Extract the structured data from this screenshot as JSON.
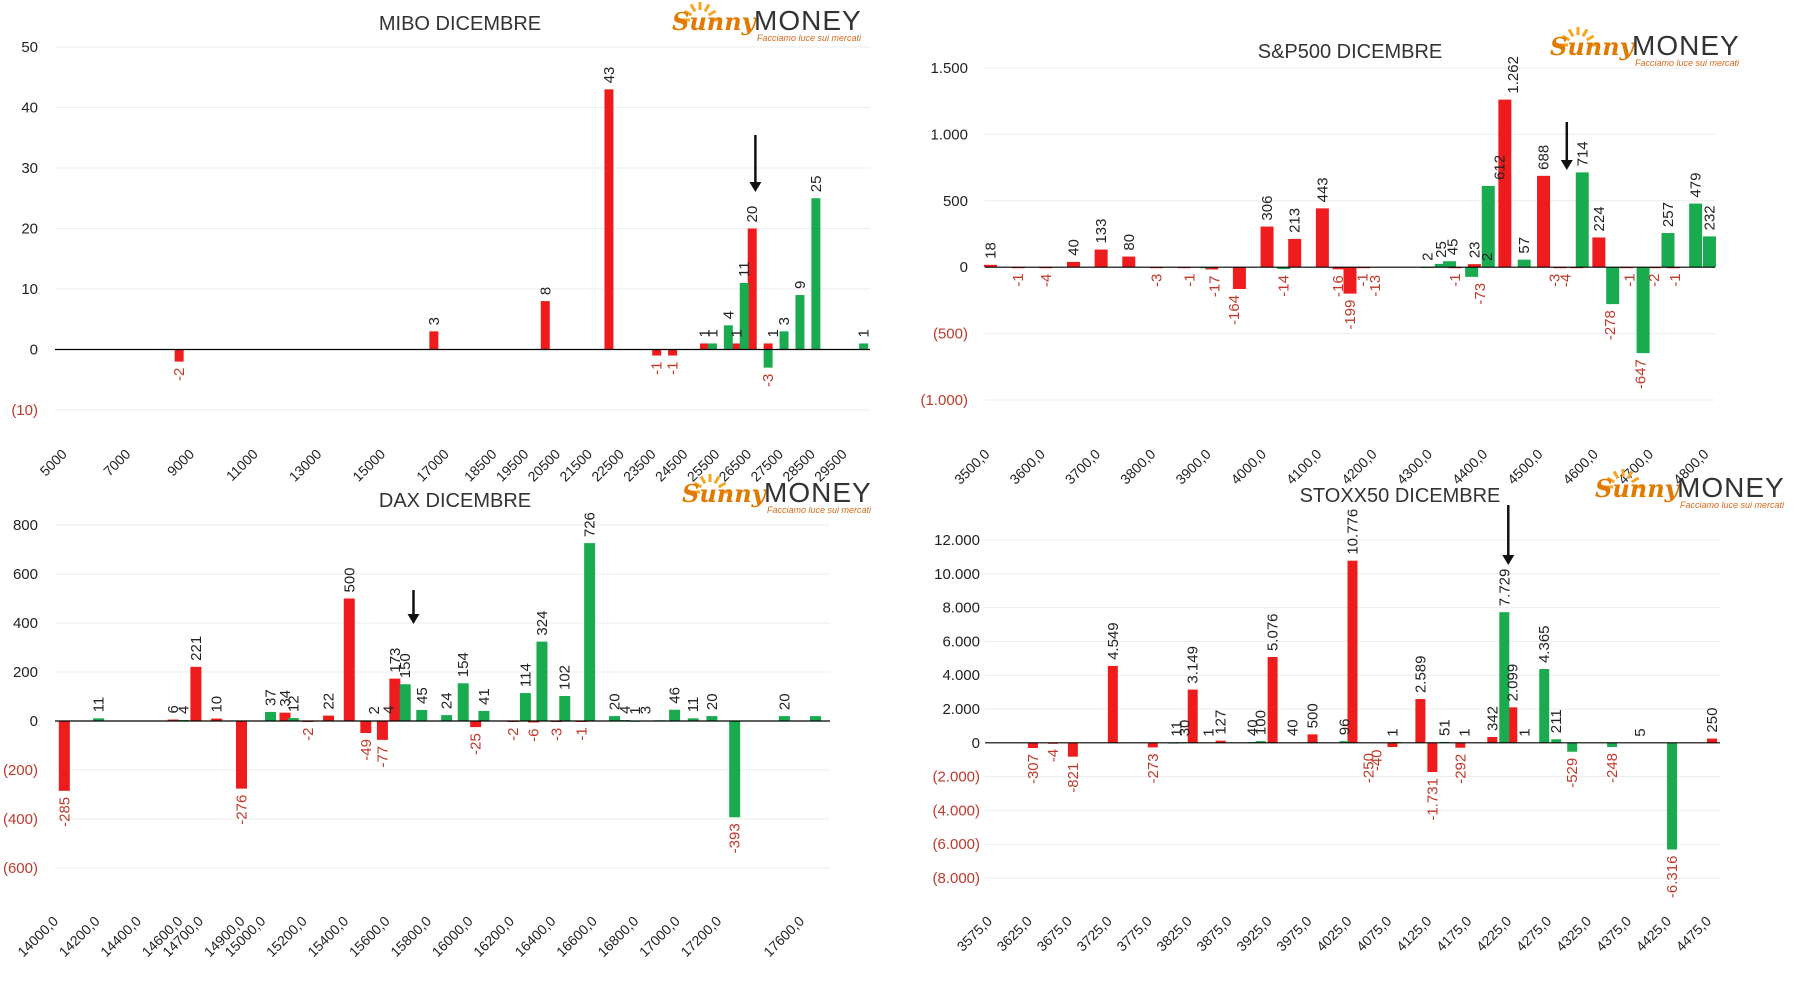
{
  "logo": {
    "brand": "Sunny",
    "word": "MONEY",
    "tagline": "Facciamo luce sui mercati"
  },
  "colors": {
    "red": "#ee1c1c",
    "green": "#1aab50",
    "neg_label": "#c0392b",
    "pos_label": "#222222"
  },
  "chart_data": [
    {
      "type": "bar",
      "title": "MIBO DICEMBRE",
      "ylim": [
        -10,
        50
      ],
      "yticks": [
        -10,
        0,
        10,
        20,
        30,
        40,
        50
      ],
      "ytick_labels": [
        "(10)",
        "0",
        "10",
        "20",
        "30",
        "40",
        "50"
      ],
      "xlim": [
        4600,
        30200
      ],
      "xticks": [
        5000,
        7000,
        9000,
        11000,
        13000,
        15000,
        17000,
        18500,
        19500,
        20500,
        21500,
        22500,
        23500,
        24500,
        25500,
        26500,
        27500,
        28500,
        29500
      ],
      "xtick_labels": [
        "5000",
        "7000",
        "9000",
        "11000",
        "13000",
        "15000",
        "17000",
        "18500",
        "19500",
        "20500",
        "21500",
        "22500",
        "23500",
        "24500",
        "25500",
        "26500",
        "27500",
        "28500",
        "29500"
      ],
      "arrow_x": 26600,
      "series": [
        {
          "color": "red",
          "x": [
            8500,
            16500,
            20000,
            22000,
            23500,
            24000,
            25000,
            26000,
            26500,
            27000
          ],
          "values": [
            -2,
            3,
            8,
            43,
            -1,
            -1,
            1,
            1,
            20,
            1
          ]
        },
        {
          "color": "green",
          "x": [
            25250,
            25750,
            26250,
            27000,
            27500,
            28000,
            28500,
            30000
          ],
          "values": [
            1,
            4,
            11,
            -3,
            3,
            9,
            25,
            1
          ]
        }
      ],
      "labels": [
        {
          "x": 8500,
          "text": "-2"
        },
        {
          "x": 16500,
          "text": "3"
        },
        {
          "x": 20000,
          "text": "8"
        },
        {
          "x": 22000,
          "text": "43"
        },
        {
          "x": 23500,
          "text": "-1"
        },
        {
          "x": 24000,
          "text": "-1"
        },
        {
          "x": 25000,
          "text": "1"
        },
        {
          "x": 25250,
          "text": "1"
        },
        {
          "x": 25750,
          "text": "4"
        },
        {
          "x": 26000,
          "text": "1"
        },
        {
          "x": 26250,
          "text": "11"
        },
        {
          "x": 26500,
          "text": "20"
        },
        {
          "x": 27000,
          "text": "-3"
        },
        {
          "x": 27150,
          "text": "1"
        },
        {
          "x": 27500,
          "text": "3"
        },
        {
          "x": 28000,
          "text": "9"
        },
        {
          "x": 28500,
          "text": "25"
        },
        {
          "x": 30000,
          "text": "1"
        }
      ]
    },
    {
      "type": "bar",
      "title": "S&P500 DICEMBRE",
      "ylim": [
        -1000,
        1500
      ],
      "yticks": [
        -1000,
        -500,
        0,
        500,
        1000,
        1500
      ],
      "ytick_labels": [
        "(1.000)",
        "(500)",
        "0",
        "500",
        "1.000",
        "1.500"
      ],
      "xlim": [
        3490,
        4810
      ],
      "xticks": [
        3500,
        3600,
        3700,
        3800,
        3900,
        4000,
        4100,
        4200,
        4300,
        4400,
        4500,
        4600,
        4700,
        4800
      ],
      "xtick_labels": [
        "3500,0",
        "3600,0",
        "3700,0",
        "3800,0",
        "3900,0",
        "4000,0",
        "4100,0",
        "4200,0",
        "4300,0",
        "4400,0",
        "4500,0",
        "4600,0",
        "4700,0",
        "4800,0"
      ],
      "arrow_x": 4542,
      "series": [
        {
          "color": "red",
          "x": [
            3500,
            3550,
            3600,
            3650,
            3700,
            3750,
            3800,
            3850,
            3900,
            3950,
            4000,
            4050,
            4100,
            4130,
            4150,
            4175,
            4340,
            4375,
            4430,
            4500,
            4530,
            4560,
            4600,
            4650,
            4700,
            4735
          ],
          "values": [
            18,
            -1,
            -4,
            40,
            133,
            80,
            -3,
            -1,
            -17,
            -164,
            306,
            213,
            443,
            -16,
            -199,
            -1,
            -1,
            23,
            1262,
            688,
            -3,
            -4,
            224,
            -1,
            -2,
            -1
          ]
        },
        {
          "color": "green",
          "x": [
            3890,
            4030,
            4290,
            4315,
            4330,
            4370,
            4400,
            4465,
            4570,
            4625,
            4680,
            4725,
            4775
          ],
          "values": [
            -1,
            -14,
            2,
            25,
            45,
            -73,
            612,
            57,
            714,
            -278,
            -647,
            257,
            479
          ]
        },
        {
          "color": "green",
          "x": [
            4800
          ],
          "values": [
            232
          ]
        }
      ],
      "labels": [
        {
          "x": 3500,
          "text": "18"
        },
        {
          "x": 3550,
          "text": "-1"
        },
        {
          "x": 3600,
          "text": "-4"
        },
        {
          "x": 3650,
          "text": "40"
        },
        {
          "x": 3700,
          "text": "133"
        },
        {
          "x": 3750,
          "text": "80"
        },
        {
          "x": 3800,
          "text": "-3"
        },
        {
          "x": 3860,
          "text": "-1"
        },
        {
          "x": 3905,
          "text": "-17"
        },
        {
          "x": 3940,
          "text": "-164"
        },
        {
          "x": 4000,
          "text": "306"
        },
        {
          "x": 4030,
          "text": "-14"
        },
        {
          "x": 4050,
          "text": "213"
        },
        {
          "x": 4100,
          "text": "443"
        },
        {
          "x": 4128,
          "text": "-16"
        },
        {
          "x": 4150,
          "text": "-199"
        },
        {
          "x": 4173,
          "text": "-1"
        },
        {
          "x": 4195,
          "text": "-13"
        },
        {
          "x": 4290,
          "text": "2"
        },
        {
          "x": 4315,
          "text": "25"
        },
        {
          "x": 4335,
          "text": "45"
        },
        {
          "x": 4340,
          "text": "-1"
        },
        {
          "x": 4375,
          "text": "23"
        },
        {
          "x": 4385,
          "text": "-73"
        },
        {
          "x": 4398,
          "text": "2"
        },
        {
          "x": 4420,
          "text": "612"
        },
        {
          "x": 4445,
          "text": "1.262"
        },
        {
          "x": 4465,
          "text": "57"
        },
        {
          "x": 4500,
          "text": "688"
        },
        {
          "x": 4520,
          "text": "-3"
        },
        {
          "x": 4540,
          "text": "-4"
        },
        {
          "x": 4570,
          "text": "714"
        },
        {
          "x": 4600,
          "text": "224"
        },
        {
          "x": 4620,
          "text": "-278"
        },
        {
          "x": 4655,
          "text": "-1"
        },
        {
          "x": 4675,
          "text": "-647"
        },
        {
          "x": 4700,
          "text": "-2"
        },
        {
          "x": 4725,
          "text": "257"
        },
        {
          "x": 4738,
          "text": "-1"
        },
        {
          "x": 4775,
          "text": "479"
        },
        {
          "x": 4800,
          "text": "232"
        }
      ]
    },
    {
      "type": "bar",
      "title": "DAX DICEMBRE",
      "ylim": [
        -600,
        800
      ],
      "yticks": [
        -600,
        -400,
        -200,
        0,
        200,
        400,
        600,
        800
      ],
      "ytick_labels": [
        "(600)",
        "(400)",
        "(200)",
        "0",
        "200",
        "400",
        "600",
        "800"
      ],
      "xlim": [
        13980,
        17720
      ],
      "xticks": [
        14000,
        14200,
        14400,
        14600,
        14700,
        14900,
        15000,
        15200,
        15400,
        15600,
        15800,
        16000,
        16200,
        16400,
        16600,
        16800,
        17000,
        17200,
        17600
      ],
      "xtick_labels": [
        "14000,0",
        "14200,0",
        "14400,0",
        "14600,0",
        "14700,0",
        "14900,0",
        "15000,0",
        "15200,0",
        "15400,0",
        "15600,0",
        "15800,0",
        "16000,0",
        "16200,0",
        "16400,0",
        "16600,0",
        "16800,0",
        "17000,0",
        "17200,0",
        "17600,0"
      ],
      "arrow_x": 15710,
      "series": [
        {
          "color": "red",
          "x": [
            14025,
            14550,
            14660,
            14760,
            14880,
            15090,
            15200,
            15300,
            15400,
            15480,
            15560,
            15620,
            16010,
            16190,
            16290,
            16400,
            16520
          ],
          "values": [
            -285,
            6,
            221,
            10,
            -276,
            34,
            -2,
            22,
            500,
            -49,
            -77,
            173,
            -25,
            -2,
            -6,
            -3,
            -1
          ]
        },
        {
          "color": "green",
          "x": [
            14190,
            14600,
            15020,
            15130,
            15520,
            15670,
            15750,
            15870,
            15950,
            16050,
            16250,
            16330,
            16440,
            16560,
            16680,
            16730,
            16780,
            16900,
            16970,
            17060,
            17150,
            17260,
            17500,
            17650
          ],
          "values": [
            11,
            4,
            37,
            12,
            2,
            150,
            45,
            24,
            154,
            41,
            114,
            324,
            102,
            726,
            20,
            4,
            1,
            3,
            46,
            11,
            20,
            -393,
            20,
            20
          ]
        }
      ],
      "labels": [
        {
          "x": 14025,
          "text": "-285"
        },
        {
          "x": 14190,
          "text": "11"
        },
        {
          "x": 14550,
          "text": "6"
        },
        {
          "x": 14600,
          "text": "4"
        },
        {
          "x": 14660,
          "text": "221"
        },
        {
          "x": 14760,
          "text": "10"
        },
        {
          "x": 14880,
          "text": "-276"
        },
        {
          "x": 15020,
          "text": "37"
        },
        {
          "x": 15090,
          "text": "34"
        },
        {
          "x": 15130,
          "text": "12"
        },
        {
          "x": 15200,
          "text": "-2"
        },
        {
          "x": 15300,
          "text": "22"
        },
        {
          "x": 15400,
          "text": "500"
        },
        {
          "x": 15480,
          "text": "-49"
        },
        {
          "x": 15520,
          "text": "2"
        },
        {
          "x": 15560,
          "text": "-77"
        },
        {
          "x": 15590,
          "text": "4"
        },
        {
          "x": 15620,
          "text": "173"
        },
        {
          "x": 15670,
          "text": "150"
        },
        {
          "x": 15750,
          "text": "45"
        },
        {
          "x": 15870,
          "text": "24"
        },
        {
          "x": 15950,
          "text": "154"
        },
        {
          "x": 16010,
          "text": "-25"
        },
        {
          "x": 16050,
          "text": "41"
        },
        {
          "x": 16190,
          "text": "-2"
        },
        {
          "x": 16250,
          "text": "114"
        },
        {
          "x": 16290,
          "text": "-6"
        },
        {
          "x": 16330,
          "text": "324"
        },
        {
          "x": 16400,
          "text": "-3"
        },
        {
          "x": 16440,
          "text": "102"
        },
        {
          "x": 16520,
          "text": "-1"
        },
        {
          "x": 16560,
          "text": "726"
        },
        {
          "x": 16680,
          "text": "20"
        },
        {
          "x": 16730,
          "text": "4"
        },
        {
          "x": 16780,
          "text": "1"
        },
        {
          "x": 16830,
          "text": "3"
        },
        {
          "x": 16970,
          "text": "46"
        },
        {
          "x": 17060,
          "text": "11"
        },
        {
          "x": 17150,
          "text": "20"
        },
        {
          "x": 17260,
          "text": "-393"
        },
        {
          "x": 17500,
          "text": "20"
        }
      ]
    },
    {
      "type": "bar",
      "title": "STOXX50 DICEMBRE",
      "ylim": [
        -8000,
        12000
      ],
      "yticks": [
        -8000,
        -6000,
        -4000,
        -2000,
        0,
        2000,
        4000,
        6000,
        8000,
        10000,
        12000
      ],
      "ytick_labels": [
        "(8.000)",
        "(6.000)",
        "(4.000)",
        "(2.000)",
        "0",
        "2.000",
        "4.000",
        "6.000",
        "8.000",
        "10.000",
        "12.000"
      ],
      "xlim": [
        3565,
        4485
      ],
      "xticks": [
        3575,
        3625,
        3675,
        3725,
        3775,
        3825,
        3875,
        3925,
        3975,
        4025,
        4075,
        4125,
        4175,
        4225,
        4275,
        4325,
        4375,
        4425,
        4475
      ],
      "xtick_labels": [
        "3575,0",
        "3625,0",
        "3675,0",
        "3725,0",
        "3775,0",
        "3825,0",
        "3875,0",
        "3925,0",
        "3975,0",
        "4025,0",
        "4075,0",
        "4125,0",
        "4175,0",
        "4225,0",
        "4275,0",
        "4325,0",
        "4375,0",
        "4425,0",
        "4475,0"
      ],
      "arrow_x": 4220,
      "series": [
        {
          "color": "red",
          "x": [
            3625,
            3650,
            3675,
            3725,
            3775,
            3825,
            3860,
            3925,
            3975,
            4025,
            4075,
            4110,
            4125,
            4160,
            4200,
            4225
          ],
          "values": [
            -307,
            -4,
            -821,
            4549,
            -273,
            3149,
            127,
            5076,
            500,
            10776,
            -250,
            2589,
            -1731,
            -292,
            342,
            2099
          ]
        },
        {
          "color": "green",
          "x": [
            3800,
            3810,
            3900,
            3910,
            4015,
            4080,
            4140,
            4215,
            4265,
            4280,
            4300,
            4350,
            4425
          ],
          "values": [
            11,
            30,
            40,
            100,
            96,
            40,
            51,
            7729,
            4365,
            211,
            -529,
            -248,
            -6316
          ]
        },
        {
          "color": "red",
          "x": [
            4475
          ],
          "values": [
            250
          ]
        }
      ],
      "labels": [
        {
          "x": 3625,
          "text": "-307"
        },
        {
          "x": 3650,
          "text": "-4"
        },
        {
          "x": 3675,
          "text": "-821"
        },
        {
          "x": 3725,
          "text": "4.549"
        },
        {
          "x": 3775,
          "text": "-273"
        },
        {
          "x": 3805,
          "text": "11"
        },
        {
          "x": 3815,
          "text": "30"
        },
        {
          "x": 3825,
          "text": "3.149"
        },
        {
          "x": 3845,
          "text": "1"
        },
        {
          "x": 3860,
          "text": "127"
        },
        {
          "x": 3900,
          "text": "40"
        },
        {
          "x": 3910,
          "text": "100"
        },
        {
          "x": 3925,
          "text": "5.076"
        },
        {
          "x": 3950,
          "text": "40"
        },
        {
          "x": 3975,
          "text": "500"
        },
        {
          "x": 4015,
          "text": "96"
        },
        {
          "x": 4025,
          "text": "10.776"
        },
        {
          "x": 4045,
          "text": "-250"
        },
        {
          "x": 4055,
          "text": "-40"
        },
        {
          "x": 4075,
          "text": "1"
        },
        {
          "x": 4110,
          "text": "2.589"
        },
        {
          "x": 4125,
          "text": "-1.731"
        },
        {
          "x": 4140,
          "text": "51"
        },
        {
          "x": 4165,
          "text": "1"
        },
        {
          "x": 4160,
          "text": "-292"
        },
        {
          "x": 4200,
          "text": "342"
        },
        {
          "x": 4215,
          "text": "7.729"
        },
        {
          "x": 4225,
          "text": "2.099"
        },
        {
          "x": 4240,
          "text": "1"
        },
        {
          "x": 4265,
          "text": "4.365"
        },
        {
          "x": 4280,
          "text": "211"
        },
        {
          "x": 4300,
          "text": "-529"
        },
        {
          "x": 4350,
          "text": "-248"
        },
        {
          "x": 4385,
          "text": "5"
        },
        {
          "x": 4425,
          "text": "-6.316"
        },
        {
          "x": 4475,
          "text": "250"
        }
      ]
    }
  ]
}
